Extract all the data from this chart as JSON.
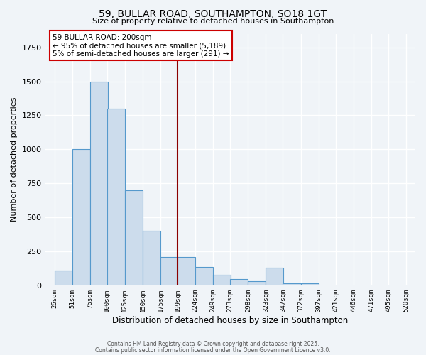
{
  "title": "59, BULLAR ROAD, SOUTHAMPTON, SO18 1GT",
  "subtitle": "Size of property relative to detached houses in Southampton",
  "xlabel": "Distribution of detached houses by size in Southampton",
  "ylabel": "Number of detached properties",
  "bar_left_edges": [
    26,
    51,
    76,
    100,
    125,
    150,
    175,
    199,
    224,
    249,
    273,
    298,
    323,
    347,
    372,
    397,
    421,
    446,
    471,
    495
  ],
  "bar_heights": [
    110,
    1000,
    1500,
    1300,
    700,
    400,
    210,
    210,
    135,
    75,
    45,
    30,
    130,
    15,
    15,
    0,
    0,
    0,
    0,
    0
  ],
  "bin_width": 25,
  "tick_labels": [
    "26sqm",
    "51sqm",
    "76sqm",
    "100sqm",
    "125sqm",
    "150sqm",
    "175sqm",
    "199sqm",
    "224sqm",
    "249sqm",
    "273sqm",
    "298sqm",
    "323sqm",
    "347sqm",
    "372sqm",
    "397sqm",
    "421sqm",
    "446sqm",
    "471sqm",
    "495sqm",
    "520sqm"
  ],
  "bar_facecolor": "#ccdcec",
  "bar_edgecolor": "#5599cc",
  "vline_x": 199,
  "vline_color": "#8b0000",
  "annotation_title": "59 BULLAR ROAD: 200sqm",
  "annotation_line1": "← 95% of detached houses are smaller (5,189)",
  "annotation_line2": "5% of semi-detached houses are larger (291) →",
  "annotation_box_facecolor": "#ffffff",
  "annotation_box_edgecolor": "#cc0000",
  "ylim": [
    0,
    1850
  ],
  "xlim": [
    13,
    533
  ],
  "background_color": "#f0f4f8",
  "grid_color": "#ffffff",
  "grid_linewidth": 1.0,
  "footer1": "Contains HM Land Registry data © Crown copyright and database right 2025.",
  "footer2": "Contains public sector information licensed under the Open Government Licence v3.0."
}
